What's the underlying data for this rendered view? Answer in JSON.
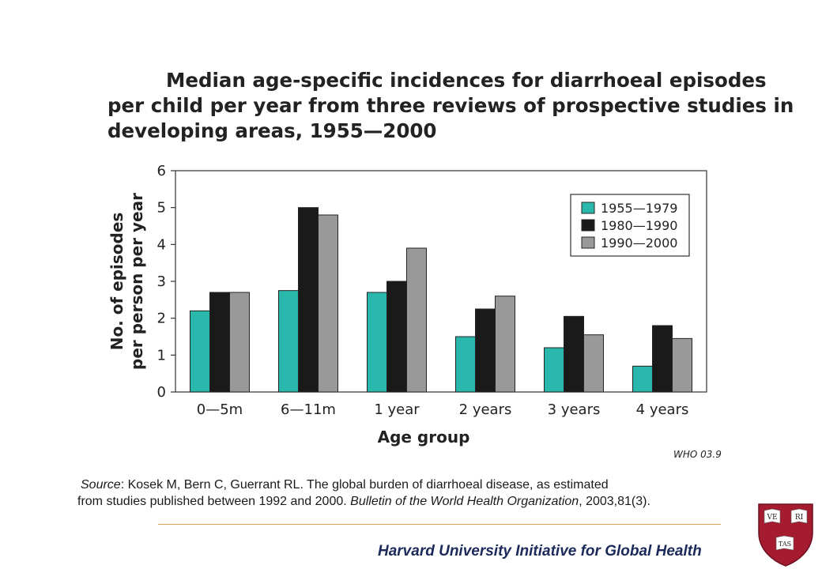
{
  "chart_data": {
    "type": "bar",
    "title_lines": [
      "Median age-specific incidences for diarrhoeal episodes",
      "per child per year from three reviews of prospective studies in",
      "developing areas, 1955—2000"
    ],
    "xlabel": "Age group",
    "ylabel_lines": [
      "No. of episodes",
      "per person per year"
    ],
    "categories": [
      "0—5m",
      "6—11m",
      "1 year",
      "2 years",
      "3 years",
      "4 years"
    ],
    "series": [
      {
        "name": "1955—1979",
        "color": "#2bb8ac",
        "values": [
          2.2,
          2.75,
          2.7,
          1.5,
          1.2,
          0.7
        ]
      },
      {
        "name": "1980—1990",
        "color": "#1a1a1a",
        "values": [
          2.7,
          5.0,
          3.0,
          2.25,
          2.05,
          1.8
        ]
      },
      {
        "name": "1990—2000",
        "color": "#999999",
        "values": [
          2.7,
          4.8,
          3.9,
          2.6,
          1.55,
          1.45
        ]
      }
    ],
    "ylim": [
      0,
      6
    ],
    "yticks": [
      "0",
      "1",
      "2",
      "3",
      "4",
      "5",
      "6"
    ],
    "legend_position": "top-right",
    "grid": false,
    "figure_code": "WHO 03.9"
  },
  "source": {
    "label": "Source",
    "authors_title": ": Kosek M, Bern C, Guerrant RL. The global burden of diarrhoeal disease, as estimated",
    "line2": "from studies published between 1992 and 2000.  ",
    "journal": "Bulletin of the World Health Organization",
    "citation": ", 2003,81(3)."
  },
  "footer": {
    "text": "Harvard University Initiative for Global Health"
  },
  "logo": {
    "ve": "VE",
    "ri": "RI",
    "tas": "TAS",
    "red": "#a51c30"
  }
}
